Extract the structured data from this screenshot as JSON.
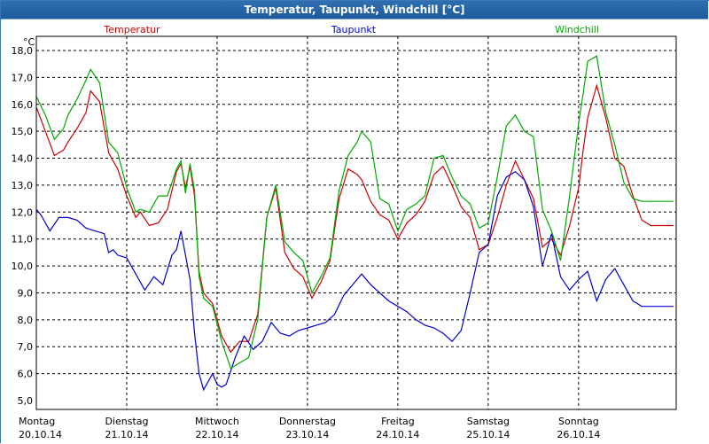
{
  "window": {
    "title": "Temperatur, Taupunkt, Windchill [°C]"
  },
  "chart_data": {
    "type": "line",
    "unit": "°C",
    "ylim": [
      5.0,
      18.0
    ],
    "y_ticks": [
      "5,0",
      "6,0",
      "7,0",
      "8,0",
      "9,0",
      "10,0",
      "11,0",
      "12,0",
      "13,0",
      "14,0",
      "15,0",
      "16,0",
      "17,0",
      "18,0"
    ],
    "x_ticks": [
      {
        "day": "Montag",
        "date": "20.10.14"
      },
      {
        "day": "Dienstag",
        "date": "21.10.14"
      },
      {
        "day": "Mittwoch",
        "date": "22.10.14"
      },
      {
        "day": "Donnerstag",
        "date": "23.10.14"
      },
      {
        "day": "Freitag",
        "date": "24.10.14"
      },
      {
        "day": "Samstag",
        "date": "25.10.14"
      },
      {
        "day": "Sonntag",
        "date": "26.10.14"
      }
    ],
    "x_range_days": [
      0,
      7.08
    ],
    "grid": true,
    "legend_position": "top",
    "series": [
      {
        "name": "Temperatur",
        "color": "#cc0000",
        "x": [
          0,
          0.1,
          0.2,
          0.3,
          0.35,
          0.45,
          0.55,
          0.6,
          0.7,
          0.8,
          0.9,
          1.0,
          1.1,
          1.15,
          1.25,
          1.35,
          1.45,
          1.55,
          1.6,
          1.65,
          1.7,
          1.75,
          1.8,
          1.85,
          1.95,
          2.05,
          2.15,
          2.25,
          2.35,
          2.45,
          2.55,
          2.65,
          2.75,
          2.85,
          2.95,
          3.05,
          3.15,
          3.25,
          3.35,
          3.45,
          3.55,
          3.6,
          3.7,
          3.8,
          3.9,
          4.0,
          4.1,
          4.2,
          4.3,
          4.4,
          4.5,
          4.6,
          4.7,
          4.8,
          4.9,
          5.0,
          5.1,
          5.2,
          5.3,
          5.4,
          5.5,
          5.6,
          5.7,
          5.8,
          5.9,
          6.0,
          6.05,
          6.1,
          6.2,
          6.3,
          6.4,
          6.5,
          6.6,
          6.7,
          6.8,
          6.9,
          7.0,
          7.05
        ],
        "values": [
          15.9,
          15.0,
          14.1,
          14.3,
          14.6,
          15.1,
          15.7,
          16.5,
          16.1,
          14.2,
          13.6,
          12.6,
          11.8,
          12.0,
          11.5,
          11.6,
          12.1,
          13.5,
          13.8,
          12.9,
          13.7,
          12.6,
          9.8,
          9.0,
          8.6,
          7.4,
          6.8,
          7.2,
          7.2,
          8.2,
          11.8,
          12.9,
          10.5,
          9.9,
          9.6,
          8.8,
          9.4,
          10.2,
          12.5,
          13.6,
          13.4,
          13.2,
          12.4,
          11.9,
          11.7,
          11.0,
          11.6,
          11.9,
          12.4,
          13.4,
          13.7,
          13.0,
          12.2,
          11.8,
          10.6,
          10.8,
          11.8,
          13.0,
          13.9,
          13.2,
          12.5,
          10.7,
          11.0,
          10.4,
          11.5,
          12.9,
          14.3,
          15.5,
          16.7,
          15.5,
          14.0,
          13.7,
          12.6,
          11.7,
          11.5,
          11.5,
          11.5,
          11.5
        ]
      },
      {
        "name": "Taupunkt",
        "color": "#0000cc",
        "x": [
          0,
          0.05,
          0.15,
          0.25,
          0.35,
          0.45,
          0.55,
          0.65,
          0.75,
          0.8,
          0.85,
          0.9,
          1.0,
          1.1,
          1.2,
          1.3,
          1.4,
          1.5,
          1.55,
          1.6,
          1.7,
          1.75,
          1.8,
          1.85,
          1.95,
          2.0,
          2.05,
          2.1,
          2.2,
          2.3,
          2.4,
          2.5,
          2.6,
          2.7,
          2.8,
          2.9,
          3.0,
          3.1,
          3.2,
          3.3,
          3.4,
          3.5,
          3.6,
          3.7,
          3.8,
          3.9,
          4.0,
          4.1,
          4.2,
          4.3,
          4.4,
          4.5,
          4.6,
          4.7,
          4.8,
          4.9,
          5.0,
          5.1,
          5.2,
          5.3,
          5.4,
          5.5,
          5.6,
          5.7,
          5.8,
          5.9,
          6.0,
          6.1,
          6.2,
          6.3,
          6.4,
          6.5,
          6.6,
          6.7,
          6.8,
          6.9,
          7.0,
          7.05
        ],
        "values": [
          12.1,
          11.9,
          11.3,
          11.8,
          11.8,
          11.7,
          11.4,
          11.3,
          11.2,
          10.5,
          10.6,
          10.4,
          10.3,
          9.7,
          9.1,
          9.6,
          9.3,
          10.4,
          10.6,
          11.3,
          9.5,
          7.5,
          6.0,
          5.4,
          6.0,
          5.6,
          5.5,
          5.6,
          6.6,
          7.4,
          6.9,
          7.2,
          7.9,
          7.5,
          7.4,
          7.6,
          7.7,
          7.8,
          7.9,
          8.2,
          8.9,
          9.3,
          9.7,
          9.3,
          9.0,
          8.7,
          8.5,
          8.3,
          8.0,
          7.8,
          7.7,
          7.5,
          7.2,
          7.6,
          9.0,
          10.5,
          10.8,
          12.6,
          13.3,
          13.5,
          13.2,
          12.2,
          10.0,
          11.2,
          9.6,
          9.1,
          9.5,
          9.8,
          8.7,
          9.5,
          9.9,
          9.3,
          8.7,
          8.5,
          8.5,
          8.5,
          8.5,
          8.5
        ]
      },
      {
        "name": "Windchill",
        "color": "#00aa00",
        "x": [
          0,
          0.1,
          0.2,
          0.3,
          0.35,
          0.45,
          0.55,
          0.6,
          0.7,
          0.8,
          0.9,
          1.0,
          1.1,
          1.15,
          1.25,
          1.35,
          1.45,
          1.55,
          1.6,
          1.65,
          1.7,
          1.75,
          1.8,
          1.85,
          1.95,
          2.05,
          2.15,
          2.25,
          2.35,
          2.45,
          2.55,
          2.65,
          2.75,
          2.85,
          2.95,
          3.05,
          3.15,
          3.25,
          3.35,
          3.45,
          3.55,
          3.6,
          3.7,
          3.8,
          3.9,
          4.0,
          4.1,
          4.2,
          4.3,
          4.4,
          4.5,
          4.6,
          4.7,
          4.8,
          4.9,
          5.0,
          5.1,
          5.2,
          5.3,
          5.4,
          5.5,
          5.6,
          5.7,
          5.8,
          5.9,
          6.0,
          6.05,
          6.1,
          6.2,
          6.3,
          6.4,
          6.5,
          6.6,
          6.7,
          6.8,
          6.9,
          7.0,
          7.05
        ],
        "values": [
          16.3,
          15.6,
          14.7,
          15.1,
          15.6,
          16.2,
          16.9,
          17.3,
          16.8,
          14.6,
          14.2,
          12.9,
          12.0,
          12.1,
          12.0,
          12.6,
          12.6,
          13.6,
          13.9,
          12.7,
          13.8,
          12.8,
          9.6,
          8.8,
          8.5,
          7.2,
          6.2,
          6.4,
          6.6,
          8.0,
          11.8,
          13.0,
          10.9,
          10.5,
          10.2,
          9.0,
          9.6,
          10.3,
          12.8,
          14.1,
          14.6,
          15.0,
          14.6,
          12.5,
          12.3,
          11.3,
          12.1,
          12.3,
          12.6,
          14.0,
          14.1,
          13.3,
          12.6,
          12.3,
          11.4,
          11.6,
          13.3,
          15.2,
          15.6,
          15.0,
          14.8,
          12.1,
          11.3,
          10.2,
          12.6,
          15.3,
          16.4,
          17.6,
          17.8,
          15.7,
          14.5,
          13.1,
          12.5,
          12.4,
          12.4,
          12.4,
          12.4,
          12.4
        ]
      }
    ]
  }
}
